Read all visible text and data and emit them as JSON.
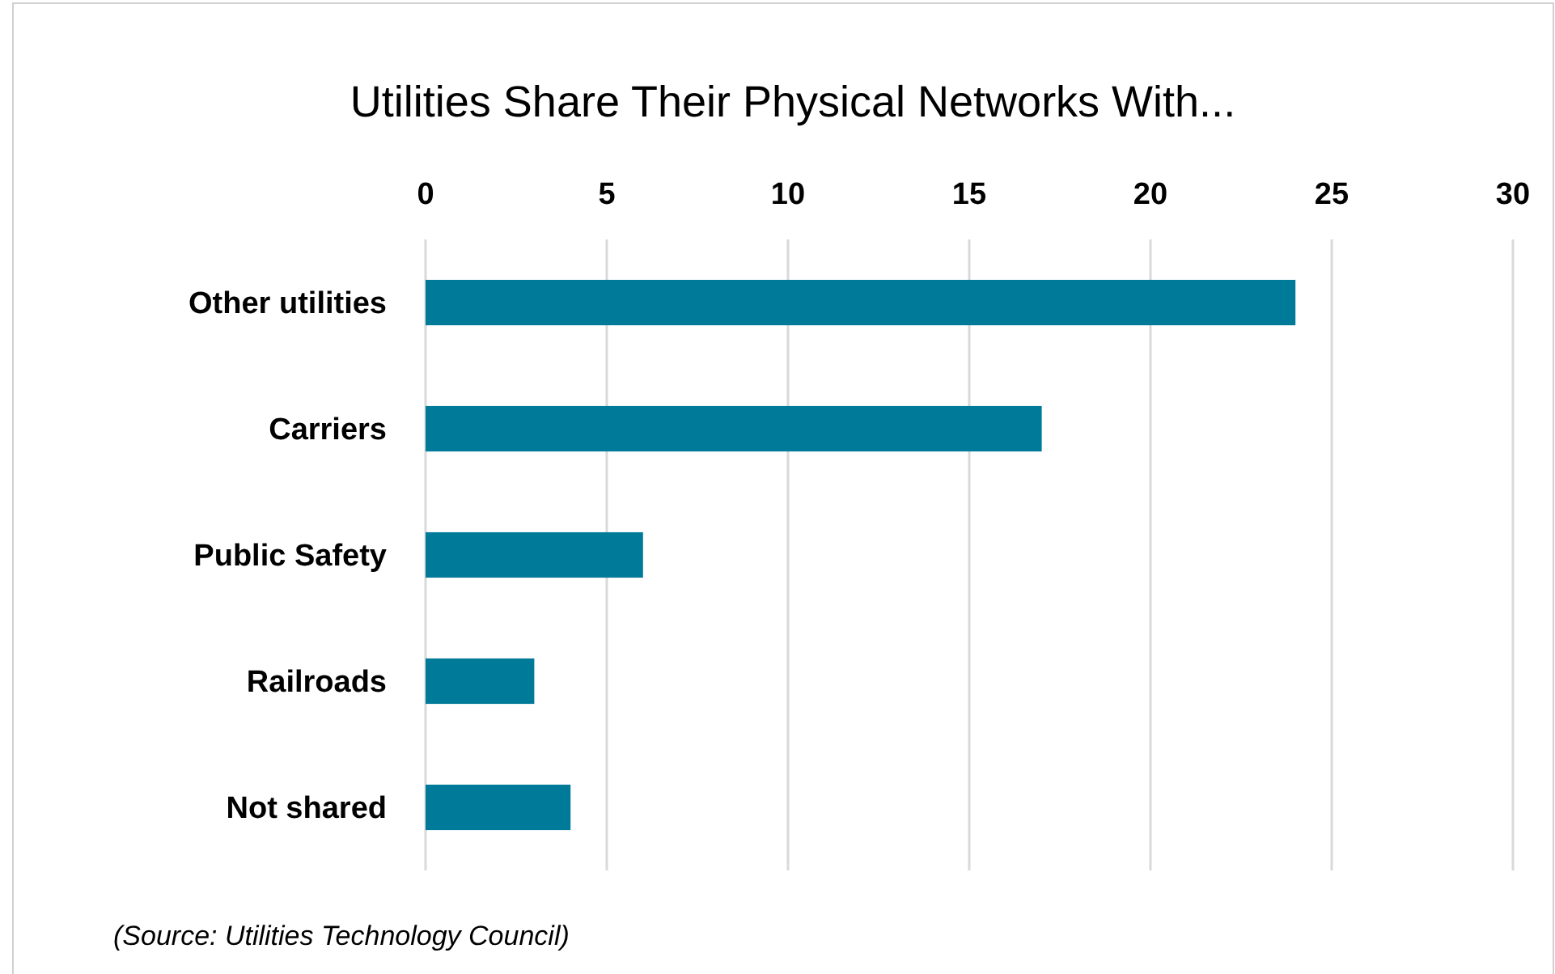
{
  "chart_data": {
    "type": "bar",
    "orientation": "horizontal",
    "title": "Utilities Share Their Physical Networks With...",
    "categories": [
      "Other utilities",
      "Carriers",
      "Public Safety",
      "Railroads",
      "Not shared"
    ],
    "values": [
      24,
      17,
      6,
      3,
      4
    ],
    "color": "#007a99",
    "xlim": [
      0,
      30
    ],
    "xticks": [
      0,
      5,
      10,
      15,
      20,
      25,
      30
    ],
    "grid": "x",
    "annotations": [
      "(Source: Utilities Technology Council)"
    ]
  }
}
